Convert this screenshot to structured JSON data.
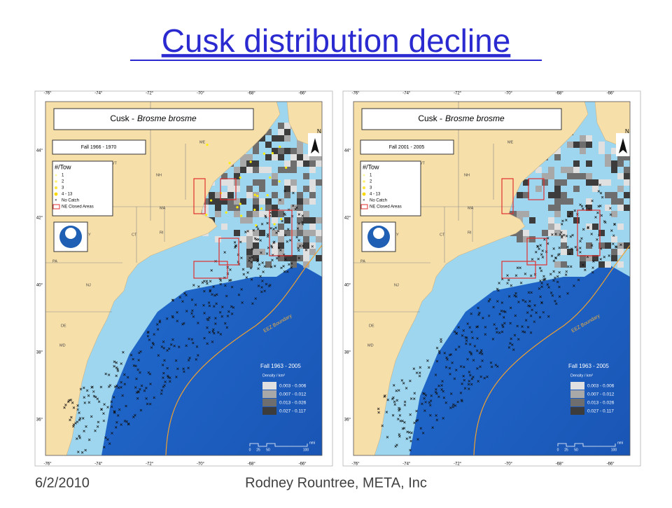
{
  "header": {
    "title": "Cusk distribution decline"
  },
  "map_labels": {
    "species_common": "Cusk -",
    "species_latin": "Brosme brosme",
    "lon_labels": [
      "-76°",
      "-74°",
      "-72°",
      "-70°",
      "-68°",
      "-66°"
    ],
    "lat_labels": [
      "44°",
      "42°",
      "40°",
      "38°",
      "36°"
    ],
    "legend_title": "#/Tow",
    "legend_items": [
      "1",
      "2",
      "3",
      "4 - 13",
      "No Catch",
      "NE Closed Areas"
    ],
    "states": [
      "ME",
      "VT",
      "NH",
      "MA",
      "NY",
      "CT",
      "RI",
      "PA",
      "NJ",
      "DE",
      "MD"
    ],
    "eez": "EEZ Boundary",
    "north": "N",
    "density_title": "Fall 1963 - 2005",
    "density_unit": "Density / km²",
    "density_classes": [
      "0.003 - 0.006",
      "0.007 - 0.012",
      "0.013 - 0.026",
      "0.027 - 0.117"
    ],
    "scale_labels": [
      "0",
      "25",
      "50",
      "100"
    ],
    "scale_unit": "nmi"
  },
  "maps": [
    {
      "period": "Fall 1966 - 1970"
    },
    {
      "period": "Fall 2001 - 2005"
    }
  ],
  "footer": {
    "date": "6/2/2010",
    "author": "Rodney Rountree, META, Inc"
  }
}
